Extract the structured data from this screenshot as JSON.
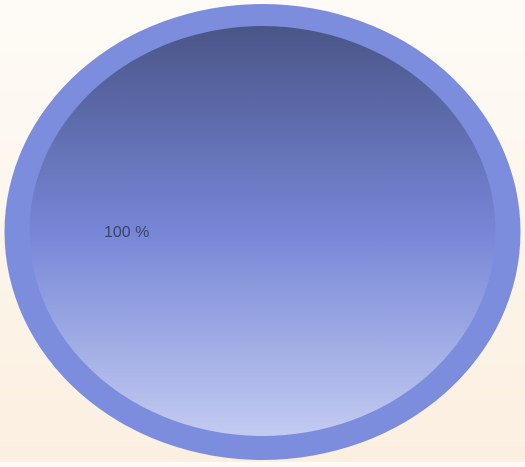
{
  "chart_data": {
    "type": "pie",
    "categories": [
      ""
    ],
    "values": [
      100
    ],
    "labels": [
      "100 %"
    ],
    "colors": {
      "rim": "#7d8ddd",
      "fill_top": "#4a5587",
      "fill_mid": "#7686d6",
      "fill_bottom": "#c3cbf0",
      "label": "#3a4466"
    }
  }
}
